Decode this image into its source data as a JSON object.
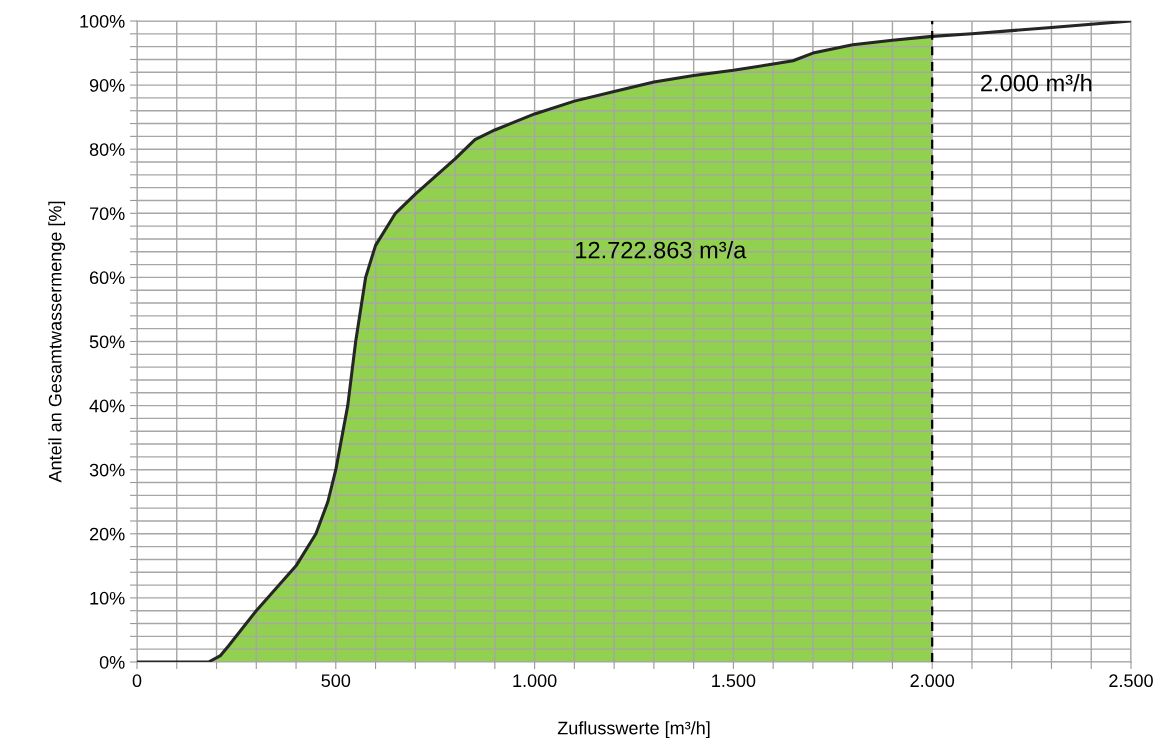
{
  "chart_data": {
    "type": "line",
    "xlabel": "Zuflusswerte [m³/h]",
    "ylabel": "Anteil an Gesamtwassermenge [%]",
    "series": [
      {
        "type": "area",
        "color": "#92d050",
        "x": [
          0,
          180,
          210,
          230,
          300,
          400,
          450,
          480,
          500,
          530,
          550,
          575,
          600,
          650,
          700,
          800,
          850,
          900,
          1000,
          1100,
          1200,
          1300,
          1400,
          1500,
          1600,
          1650,
          1700,
          1800,
          1900,
          2000
        ],
        "values": [
          0,
          0,
          1,
          2.5,
          8,
          15,
          20,
          25,
          30,
          40,
          50,
          60,
          65,
          70,
          73,
          78.5,
          81.5,
          83,
          85.5,
          87.5,
          89,
          90.5,
          91.5,
          92.3,
          93.3,
          93.8,
          95,
          96.3,
          97,
          97.6
        ]
      },
      {
        "color": "#262626",
        "x": [
          0,
          180,
          210,
          230,
          300,
          400,
          450,
          480,
          500,
          530,
          550,
          575,
          600,
          650,
          700,
          800,
          850,
          900,
          1000,
          1100,
          1200,
          1300,
          1400,
          1500,
          1600,
          1650,
          1700,
          1800,
          1900,
          2000,
          2100,
          2200,
          2300,
          2400,
          2500
        ],
        "values": [
          0,
          0,
          1,
          2.5,
          8,
          15,
          20,
          25,
          30,
          40,
          50,
          60,
          65,
          70,
          73,
          78.5,
          81.5,
          83,
          85.5,
          87.5,
          89,
          90.5,
          91.5,
          92.3,
          93.3,
          93.8,
          95,
          96.3,
          97,
          97.6,
          98,
          98.5,
          99,
          99.5,
          100
        ]
      }
    ],
    "ref_lines": [
      {
        "axis": "x",
        "value": 2000,
        "label": "2.000 m³/h",
        "color": "#000000",
        "line_style": "dashed"
      }
    ],
    "annotations": [
      "12.722.863 m³/a"
    ],
    "xlim": [
      0,
      2500
    ],
    "ylim": [
      0,
      100
    ],
    "xticks": [
      0,
      {
        "value": 100,
        "label": null
      },
      {
        "value": 200,
        "label": null
      },
      {
        "value": 300,
        "label": null
      },
      {
        "value": 400,
        "label": null
      },
      500,
      {
        "value": 600,
        "label": null
      },
      {
        "value": 700,
        "label": null
      },
      {
        "value": 800,
        "label": null
      },
      {
        "value": 900,
        "label": null
      },
      {
        "value": 1000,
        "label": "1.000"
      },
      {
        "value": 1100,
        "label": null
      },
      {
        "value": 1200,
        "label": null
      },
      {
        "value": 1300,
        "label": null
      },
      {
        "value": 1400,
        "label": null
      },
      {
        "value": 1500,
        "label": "1.500"
      },
      {
        "value": 1600,
        "label": null
      },
      {
        "value": 1700,
        "label": null
      },
      {
        "value": 1800,
        "label": null
      },
      {
        "value": 1900,
        "label": null
      },
      {
        "value": 2000,
        "label": "2.000"
      },
      {
        "value": 2100,
        "label": null
      },
      {
        "value": 2200,
        "label": null
      },
      {
        "value": 2300,
        "label": null
      },
      {
        "value": 2400,
        "label": null
      },
      {
        "value": 2500,
        "label": "2.500"
      }
    ],
    "yticks": [
      {
        "value": 0,
        "label": "0%"
      },
      {
        "value": 2,
        "label": null
      },
      {
        "value": 4,
        "label": null
      },
      {
        "value": 6,
        "label": null
      },
      {
        "value": 8,
        "label": null
      },
      {
        "value": 10,
        "label": "10%"
      },
      {
        "value": 12,
        "label": null
      },
      {
        "value": 14,
        "label": null
      },
      {
        "value": 16,
        "label": null
      },
      {
        "value": 18,
        "label": null
      },
      {
        "value": 20,
        "label": "20%"
      },
      {
        "value": 22,
        "label": null
      },
      {
        "value": 24,
        "label": null
      },
      {
        "value": 26,
        "label": null
      },
      {
        "value": 28,
        "label": null
      },
      {
        "value": 30,
        "label": "30%"
      },
      {
        "value": 32,
        "label": null
      },
      {
        "value": 34,
        "label": null
      },
      {
        "value": 36,
        "label": null
      },
      {
        "value": 38,
        "label": null
      },
      {
        "value": 40,
        "label": "40%"
      },
      {
        "value": 42,
        "label": null
      },
      {
        "value": 44,
        "label": null
      },
      {
        "value": 46,
        "label": null
      },
      {
        "value": 48,
        "label": null
      },
      {
        "value": 50,
        "label": "50%"
      },
      {
        "value": 52,
        "label": null
      },
      {
        "value": 54,
        "label": null
      },
      {
        "value": 56,
        "label": null
      },
      {
        "value": 58,
        "label": null
      },
      {
        "value": 60,
        "label": "60%"
      },
      {
        "value": 62,
        "label": null
      },
      {
        "value": 64,
        "label": null
      },
      {
        "value": 66,
        "label": null
      },
      {
        "value": 68,
        "label": null
      },
      {
        "value": 70,
        "label": "70%"
      },
      {
        "value": 72,
        "label": null
      },
      {
        "value": 74,
        "label": null
      },
      {
        "value": 76,
        "label": null
      },
      {
        "value": 78,
        "label": null
      },
      {
        "value": 80,
        "label": "80%"
      },
      {
        "value": 82,
        "label": null
      },
      {
        "value": 84,
        "label": null
      },
      {
        "value": 86,
        "label": null
      },
      {
        "value": 88,
        "label": null
      },
      {
        "value": 90,
        "label": "90%"
      },
      {
        "value": 92,
        "label": null
      },
      {
        "value": 94,
        "label": null
      },
      {
        "value": 96,
        "label": null
      },
      {
        "value": 98,
        "label": null
      },
      {
        "value": 100,
        "label": "100%"
      }
    ],
    "grid": true
  }
}
